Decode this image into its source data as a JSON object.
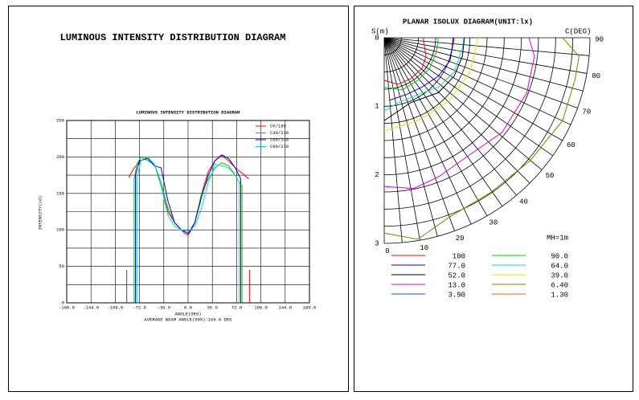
{
  "chart_data": [
    {
      "type": "line",
      "title": "LUMINOUS INTENSITY DISTRIBUTION DIAGRAM",
      "subtitle": "LUMINOUS INTENSITY DISTRIBUTION DIAGRAM",
      "y_label": "INTENSITY(cd)",
      "x_label": "ANGLE(DEG)",
      "footer": "AVERAGE BEAM ANGLE(50%):166.5 DEG",
      "xlim": [
        -180,
        180
      ],
      "xticks": [
        {
          "value": -180,
          "label": "-180.0"
        },
        {
          "value": -144,
          "label": "-144.0"
        },
        {
          "value": -108,
          "label": "-108.0"
        },
        {
          "value": -72,
          "label": "-72.0"
        },
        {
          "value": -36,
          "label": "-36.0"
        },
        {
          "value": 0,
          "label": "0.0"
        },
        {
          "value": 36,
          "label": "36.0"
        },
        {
          "value": 72,
          "label": "72.0"
        },
        {
          "value": 108,
          "label": "108.0"
        },
        {
          "value": 144,
          "label": "144.0"
        },
        {
          "value": 180,
          "label": "180.0"
        }
      ],
      "ylim": [
        0,
        250
      ],
      "yticks": [
        0,
        50,
        100,
        150,
        200,
        250
      ],
      "yminorticks": [
        25,
        75,
        125,
        175,
        225
      ],
      "grid": true,
      "legend": "top-right",
      "series": [
        {
          "name": "C0/180",
          "color": "#ff0000",
          "x": [
            -91,
            -91,
            null,
            -88,
            -80,
            -70,
            -60,
            -50,
            -40,
            -30,
            -20,
            -10,
            -5,
            0,
            5,
            10,
            20,
            30,
            40,
            50,
            60,
            70,
            80,
            90,
            null,
            91,
            91
          ],
          "values": [
            0,
            45,
            null,
            172,
            185,
            195,
            198,
            190,
            160,
            125,
            110,
            100,
            95,
            93,
            100,
            110,
            150,
            180,
            195,
            202,
            195,
            185,
            178,
            170,
            null,
            45,
            0
          ]
        },
        {
          "name": "C30/210",
          "color": "#00cc00",
          "x": [
            -80,
            -80,
            -76,
            -70,
            -60,
            -50,
            -40,
            -30,
            -20,
            -10,
            0,
            10,
            20,
            30,
            40,
            50,
            60,
            70,
            76,
            80,
            80
          ],
          "values": [
            0,
            170,
            190,
            200,
            195,
            190,
            165,
            130,
            110,
            100,
            95,
            110,
            150,
            170,
            185,
            192,
            188,
            175,
            165,
            160,
            0
          ]
        },
        {
          "name": "C60/240",
          "color": "#0000ff",
          "x": [
            -78,
            -78,
            -72,
            -60,
            -50,
            -40,
            -30,
            -20,
            -10,
            0,
            10,
            20,
            30,
            40,
            50,
            60,
            70,
            78,
            78
          ],
          "values": [
            0,
            175,
            195,
            198,
            188,
            185,
            140,
            110,
            100,
            95,
            110,
            145,
            175,
            195,
            203,
            198,
            185,
            170,
            0
          ]
        },
        {
          "name": "C90/270",
          "color": "#00dddd",
          "x": [
            -76,
            -76,
            -70,
            -60,
            -50,
            -40,
            -30,
            -20,
            -10,
            0,
            10,
            20,
            30,
            40,
            50,
            60,
            70,
            76,
            76
          ],
          "values": [
            0,
            170,
            195,
            200,
            190,
            160,
            120,
            105,
            100,
            98,
            105,
            130,
            165,
            190,
            188,
            185,
            175,
            165,
            0
          ]
        }
      ]
    },
    {
      "type": "isolux",
      "title": "PLANAR ISOLUX DIAGRAM(UNIT:lx)",
      "s_label": "S(m)",
      "c_label": "C(DEG)",
      "note": "MH=1m",
      "slim": [
        0,
        3
      ],
      "sticks": [
        0,
        1,
        2,
        3
      ],
      "sgrid": [
        0.25,
        0.5,
        0.75,
        1,
        1.25,
        1.5,
        1.75,
        2,
        2.25,
        2.5,
        2.75,
        3
      ],
      "cticks": [
        0,
        10,
        20,
        30,
        40,
        50,
        60,
        70,
        80,
        90
      ],
      "cgrid": [
        0,
        5,
        10,
        15,
        20,
        25,
        30,
        35,
        40,
        45,
        50,
        55,
        60,
        65,
        70,
        75,
        80,
        85,
        90
      ],
      "series": [
        {
          "name": "100",
          "color": "#ff0000",
          "x": [
            0,
            0.2,
            0.38,
            0.55,
            0.61,
            0.58,
            0.57
          ],
          "y": [
            0.62,
            0.68,
            0.6,
            0.45,
            0.27,
            0.09,
            0
          ]
        },
        {
          "name": "90.0",
          "color": "#00cc00",
          "x": [
            0,
            0.26,
            0.49,
            0.66,
            0.76,
            0.79
          ],
          "y": [
            0.72,
            0.76,
            0.62,
            0.45,
            0.21,
            0
          ]
        },
        {
          "name": "77.0",
          "color": "#0000ff",
          "x": [
            0.08,
            0.32,
            0.55,
            0.79,
            0.96,
            1.02
          ],
          "y": [
            0.91,
            0.83,
            0.72,
            0.56,
            0.33,
            0
          ]
        },
        {
          "name": "64.0",
          "color": "#00dddd",
          "x": [
            0,
            0.2,
            0.49,
            0.79,
            1.02,
            1.14,
            1.16
          ],
          "y": [
            1.07,
            0.95,
            0.83,
            0.72,
            0.5,
            0.15,
            0
          ]
        },
        {
          "name": "52.0",
          "color": "#000000",
          "x": [
            0,
            0.38,
            0.79,
            1.02,
            1.14,
            1.17
          ],
          "y": [
            1.21,
            0.95,
            0.8,
            0.56,
            0.27,
            0
          ]
        },
        {
          "name": "39.0",
          "color": "#e6e600",
          "x": [
            0,
            0.49,
            0.96,
            1.25,
            1.37
          ],
          "y": [
            1.36,
            1.21,
            0.91,
            0.5,
            0
          ]
        },
        {
          "name": "13.0",
          "color": "#dd00dd",
          "x": [
            0,
            0.43,
            0.79,
            1.2,
            1.72,
            2.08,
            2.19,
            2.11
          ],
          "y": [
            2.17,
            2.2,
            2.03,
            1.74,
            1.38,
            0.8,
            0.27,
            0
          ]
        },
        {
          "name": "6.40",
          "color": "#808000",
          "x": [
            0,
            0.49,
            0.96,
            1.55,
            2.13,
            2.6,
            2.78,
            2.84,
            2.6
          ],
          "y": [
            2.85,
            2.94,
            2.61,
            2.26,
            1.79,
            1.21,
            0.62,
            0.27,
            0
          ]
        },
        {
          "name": "3.90",
          "color": "#0066cc"
        },
        {
          "name": "1.30",
          "color": "#ff6600"
        }
      ]
    }
  ]
}
